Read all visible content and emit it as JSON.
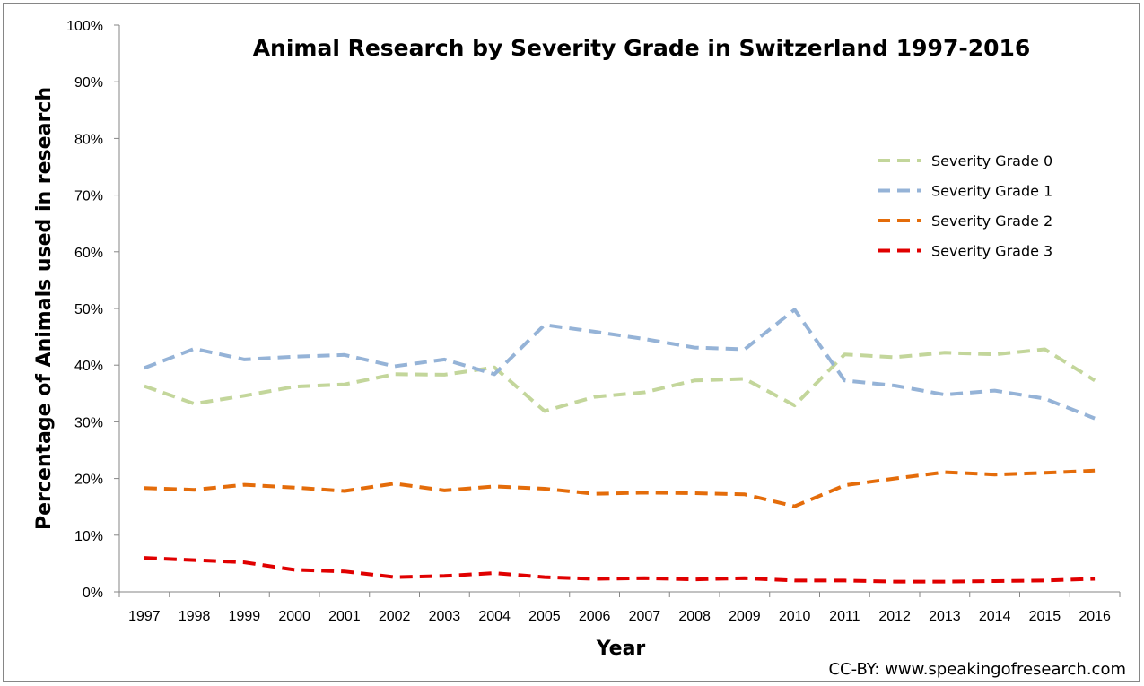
{
  "chart_data": {
    "type": "line",
    "title": "Animal Research by Severity Grade in Switzerland 1997-2016",
    "xlabel": "Year",
    "ylabel": "Percentage of Animals used in research",
    "ylim": [
      0,
      100
    ],
    "y_ticks": [
      "0%",
      "10%",
      "20%",
      "30%",
      "40%",
      "50%",
      "60%",
      "70%",
      "80%",
      "90%",
      "100%"
    ],
    "categories": [
      "1997",
      "1998",
      "1999",
      "2000",
      "2001",
      "2002",
      "2003",
      "2004",
      "2005",
      "2006",
      "2007",
      "2008",
      "2009",
      "2010",
      "2011",
      "2012",
      "2013",
      "2014",
      "2015",
      "2016"
    ],
    "series": [
      {
        "name": "Severity Grade 0",
        "color": "#c3d69b",
        "values": [
          36.3,
          33.2,
          34.6,
          36.2,
          36.6,
          38.4,
          38.3,
          39.6,
          31.9,
          34.4,
          35.2,
          37.3,
          37.6,
          32.9,
          41.9,
          41.4,
          42.2,
          41.9,
          42.8,
          37.3
        ]
      },
      {
        "name": "Severity Grade 1",
        "color": "#95b3d7",
        "values": [
          39.5,
          42.9,
          41.0,
          41.5,
          41.8,
          39.8,
          41.0,
          38.4,
          47.1,
          45.9,
          44.6,
          43.1,
          42.8,
          49.8,
          37.3,
          36.4,
          34.8,
          35.5,
          34.1,
          30.6
        ]
      },
      {
        "name": "Severity Grade 2",
        "color": "#e46c0a",
        "values": [
          18.3,
          18.0,
          18.9,
          18.4,
          17.8,
          19.1,
          17.9,
          18.6,
          18.2,
          17.3,
          17.5,
          17.4,
          17.2,
          15.1,
          18.8,
          20.0,
          21.1,
          20.7,
          21.0,
          21.4
        ]
      },
      {
        "name": "Severity Grade 3",
        "color": "#e00000",
        "values": [
          6.0,
          5.6,
          5.2,
          3.9,
          3.6,
          2.6,
          2.8,
          3.3,
          2.6,
          2.3,
          2.4,
          2.2,
          2.4,
          2.0,
          2.0,
          1.8,
          1.8,
          1.9,
          2.0,
          2.3
        ]
      }
    ],
    "legend": "top-right",
    "grid": false
  },
  "credit": "CC-BY: www.speakingofresearch.com"
}
